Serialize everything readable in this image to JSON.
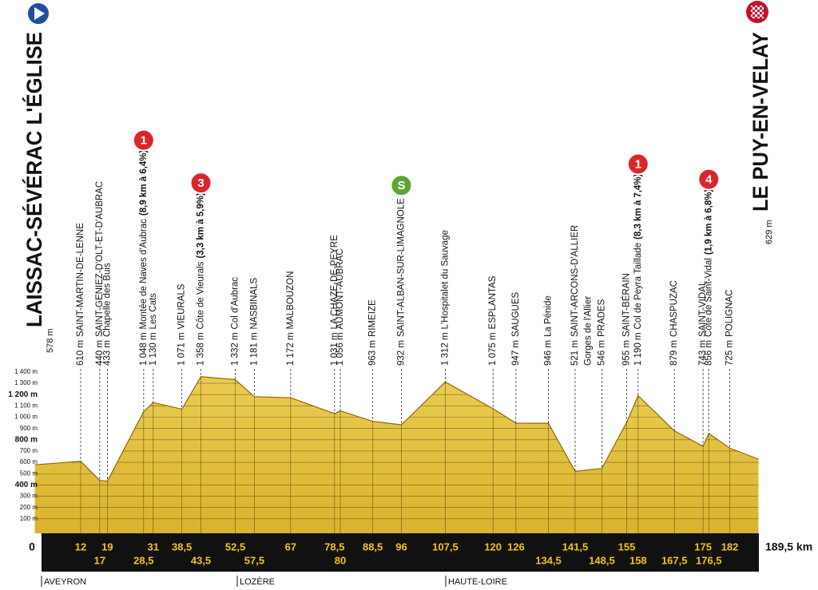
{
  "chart_data": {
    "type": "elevation-profile",
    "start": {
      "name": "LAISSAC-SÉVÉRAC L'ÉGLISE",
      "elevation": {
        "value": 578,
        "label": "578 m"
      },
      "km": 0
    },
    "finish": {
      "name": "LE PUY-EN-VELAY",
      "elevation": {
        "value": 629,
        "label": "629 m"
      },
      "km": {
        "value": 189.5,
        "label": "189,5 km"
      }
    },
    "xlim": [
      0,
      189.5
    ],
    "ylim": [
      0,
      1400
    ],
    "yticks": [
      {
        "value": 100,
        "label": "100 m"
      },
      {
        "value": 200,
        "label": "200 m"
      },
      {
        "value": 300,
        "label": "300 m"
      },
      {
        "value": 400,
        "label": "400 m"
      },
      {
        "value": 500,
        "label": "500 m"
      },
      {
        "value": 600,
        "label": "600 m"
      },
      {
        "value": 700,
        "label": "700 m"
      },
      {
        "value": 800,
        "label": "800 m"
      },
      {
        "value": 900,
        "label": "900 m"
      },
      {
        "value": 1000,
        "label": "1 000 m"
      },
      {
        "value": 1100,
        "label": "1 100 m"
      },
      {
        "value": 1200,
        "label": "1 200 m"
      },
      {
        "value": 1300,
        "label": "1 300 m"
      },
      {
        "value": 1400,
        "label": "1 400 m"
      }
    ],
    "color": "#e2bd36",
    "waypoints": [
      {
        "km": 12,
        "elevation": {
          "value": 610,
          "label": "610 m"
        },
        "name": "SAINT-MARTIN-DE-LENNE"
      },
      {
        "km": 17,
        "elevation": {
          "value": 440,
          "label": "440 m"
        },
        "name": "SAINT-GENIEZ-D'OLT-ET-D'AUBRAC"
      },
      {
        "km": 19,
        "elevation": {
          "value": 433,
          "label": "433 m"
        },
        "name": "Chapelle des Buis"
      },
      {
        "km": {
          "value": 28.5,
          "label": "28,5"
        },
        "elevation": {
          "value": 1048,
          "label": "1 048 m"
        },
        "name": "Montée de Naves d'Aubrac",
        "climb": "(8,9 km à 6,4%)",
        "badge": {
          "label": "1",
          "color": "#d9262c"
        }
      },
      {
        "km": 31,
        "elevation": {
          "value": 1130,
          "label": "1 130 m"
        },
        "name": "Les Cats"
      },
      {
        "km": {
          "value": 38.5,
          "label": "38,5"
        },
        "elevation": {
          "value": 1071,
          "label": "1 071 m"
        },
        "name": "VIEURALS"
      },
      {
        "km": {
          "value": 43.5,
          "label": "43,5"
        },
        "elevation": {
          "value": 1358,
          "label": "1 358 m"
        },
        "name": "Côte de Vieurals",
        "climb": "(3,3 km à 5,9%)",
        "badge": {
          "label": "3",
          "color": "#d9262c"
        }
      },
      {
        "km": {
          "value": 52.5,
          "label": "52,5"
        },
        "elevation": {
          "value": 1332,
          "label": "1 332 m"
        },
        "name": "Col d'Aubrac"
      },
      {
        "km": {
          "value": 57.5,
          "label": "57,5"
        },
        "elevation": {
          "value": 1181,
          "label": "1 181 m"
        },
        "name": "NASBINALS"
      },
      {
        "km": 67,
        "elevation": {
          "value": 1172,
          "label": "1 172 m"
        },
        "name": "MALBOUZON"
      },
      {
        "km": {
          "value": 78.5,
          "label": "78,5"
        },
        "elevation": {
          "value": 1031,
          "label": "1 031 m"
        },
        "name": "LA CHAZE-DE-PEYRE"
      },
      {
        "km": 80,
        "elevation": {
          "value": 1056,
          "label": "1 056 m"
        },
        "name": "AUMONT-AUBRAC"
      },
      {
        "km": {
          "value": 88.5,
          "label": "88,5"
        },
        "elevation": {
          "value": 963,
          "label": "963 m"
        },
        "name": "RIMEIZE"
      },
      {
        "km": 96,
        "elevation": {
          "value": 932,
          "label": "932 m"
        },
        "name": "SAINT-ALBAN-SUR-LIMAGNOLE",
        "badge": {
          "label": "S",
          "color": "#5aa632"
        }
      },
      {
        "km": {
          "value": 107.5,
          "label": "107,5"
        },
        "elevation": {
          "value": 1312,
          "label": "1 312 m"
        },
        "name": "L'Hospitalet du Sauvage"
      },
      {
        "km": 120,
        "elevation": {
          "value": 1075,
          "label": "1 075 m"
        },
        "name": "ESPLANTAS"
      },
      {
        "km": 126,
        "elevation": {
          "value": 947,
          "label": "947 m"
        },
        "name": "SAUGUES"
      },
      {
        "km": {
          "value": 134.5,
          "label": "134,5"
        },
        "elevation": {
          "value": 946,
          "label": "946 m"
        },
        "name": "La Pénide"
      },
      {
        "km": {
          "value": 141.5,
          "label": "141,5"
        },
        "elevation": {
          "value": 521,
          "label": "521 m"
        },
        "name": "SAINT-ARCONS-D'ALLIER"
      },
      {
        "name": "Gorges de l'Allier"
      },
      {
        "km": {
          "value": 148.5,
          "label": "148,5"
        },
        "elevation": {
          "value": 546,
          "label": "546 m"
        },
        "name": "PRADES"
      },
      {
        "km": 155,
        "elevation": {
          "value": 955,
          "label": "955 m"
        },
        "name": "SAINT-BÉRAIN"
      },
      {
        "km": 158,
        "elevation": {
          "value": 1190,
          "label": "1 190 m"
        },
        "name": "Col de Peyra Taillade",
        "climb": "(8,3 km à 7,4%)",
        "badge": {
          "label": "1",
          "color": "#d9262c"
        }
      },
      {
        "km": {
          "value": 167.5,
          "label": "167,5"
        },
        "elevation": {
          "value": 879,
          "label": "879 m"
        },
        "name": "CHASPUZAC"
      },
      {
        "km": 175,
        "elevation": {
          "value": 743,
          "label": "743 m"
        },
        "name": "SAINT-VIDAL"
      },
      {
        "km": {
          "value": 176.5,
          "label": "176,5"
        },
        "elevation": {
          "value": 856,
          "label": "856 m"
        },
        "name": "Côte de Saint-Vidal",
        "climb": "(1,9 km à 6,8%)",
        "badge": {
          "label": "4",
          "color": "#d9262c"
        }
      },
      {
        "km": 182,
        "elevation": {
          "value": 725,
          "label": "725 m"
        },
        "name": "POLIGNAC"
      }
    ],
    "regions": [
      "AVEYRON",
      "LOZÈRE",
      "HAUTE-LOIRE"
    ]
  }
}
